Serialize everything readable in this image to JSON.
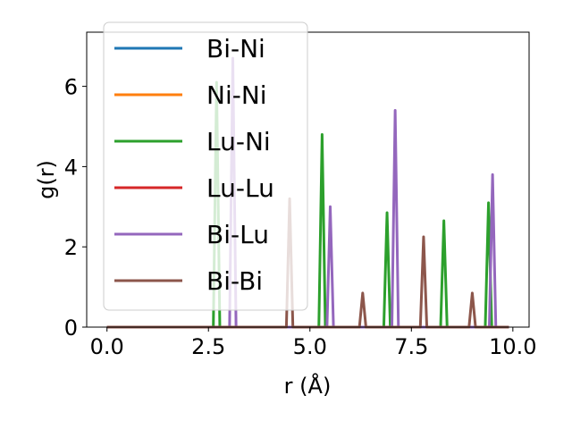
{
  "chart_data": {
    "type": "line",
    "xlabel": "r (Å)",
    "ylabel": "g(r)",
    "xlim": [
      -0.5,
      10.4
    ],
    "ylim": [
      0,
      7.35
    ],
    "xticks": [
      0.0,
      2.5,
      5.0,
      7.5,
      10.0
    ],
    "xtick_labels": [
      "0.0",
      "2.5",
      "5.0",
      "7.5",
      "10.0"
    ],
    "yticks": [
      0,
      2,
      4,
      6
    ],
    "ytick_labels": [
      "0",
      "2",
      "4",
      "6"
    ],
    "grid": false,
    "legend_position": "top-left",
    "series": [
      {
        "name": "Bi-Ni",
        "color": "#1f77b4",
        "peaks": []
      },
      {
        "name": "Ni-Ni",
        "color": "#ff7f0e",
        "peaks": []
      },
      {
        "name": "Lu-Ni",
        "color": "#2ca02c",
        "peaks": [
          [
            2.7,
            6.1
          ],
          [
            5.3,
            4.8
          ],
          [
            6.9,
            2.85
          ],
          [
            8.3,
            2.65
          ],
          [
            9.4,
            3.1
          ]
        ]
      },
      {
        "name": "Lu-Lu",
        "color": "#d62728",
        "peaks": []
      },
      {
        "name": "Bi-Lu",
        "color": "#9467bd",
        "peaks": [
          [
            3.1,
            6.7
          ],
          [
            5.5,
            3.0
          ],
          [
            7.1,
            5.4
          ],
          [
            9.5,
            3.8
          ]
        ]
      },
      {
        "name": "Bi-Bi",
        "color": "#8c564b",
        "peaks": [
          [
            4.5,
            3.2
          ],
          [
            6.3,
            0.85
          ],
          [
            7.8,
            2.25
          ],
          [
            9.0,
            0.85
          ]
        ]
      }
    ],
    "x_range": [
      0.0,
      9.9
    ],
    "peak_halfwidth": 0.08
  }
}
